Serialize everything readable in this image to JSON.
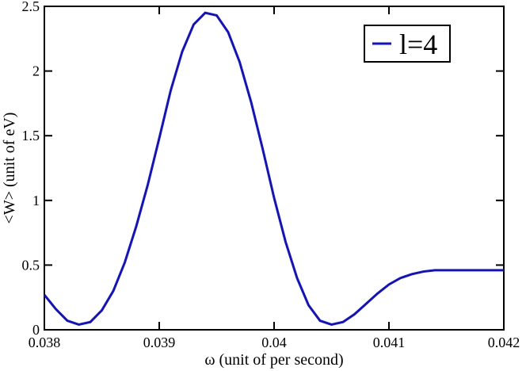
{
  "chart_data": {
    "type": "line",
    "xlabel": "ω (unit of per second)",
    "ylabel": "<W> (unit of eV)",
    "x": [
      0.038,
      0.0381,
      0.0382,
      0.0383,
      0.0384,
      0.0385,
      0.0386,
      0.0387,
      0.0388,
      0.0389,
      0.039,
      0.0391,
      0.0392,
      0.0393,
      0.0394,
      0.0395,
      0.0396,
      0.0397,
      0.0398,
      0.0399,
      0.04,
      0.0401,
      0.0402,
      0.0403,
      0.0404,
      0.0405,
      0.0406,
      0.0407,
      0.0408,
      0.0409,
      0.041,
      0.0411,
      0.0412,
      0.0413,
      0.0414,
      0.0415,
      0.0416,
      0.0417,
      0.0418,
      0.0419,
      0.042
    ],
    "series": [
      {
        "name": "l=4",
        "color": "#1010d0",
        "values": [
          0.27,
          0.16,
          0.07,
          0.04,
          0.06,
          0.15,
          0.3,
          0.52,
          0.8,
          1.12,
          1.48,
          1.85,
          2.15,
          2.36,
          2.45,
          2.43,
          2.3,
          2.07,
          1.76,
          1.4,
          1.02,
          0.68,
          0.4,
          0.19,
          0.07,
          0.04,
          0.06,
          0.12,
          0.2,
          0.28,
          0.35,
          0.4,
          0.43,
          0.45,
          0.46,
          0.46,
          0.46,
          0.46,
          0.46,
          0.46,
          0.46
        ]
      }
    ],
    "xlim": [
      0.038,
      0.042
    ],
    "xticks": [
      0.038,
      0.039,
      0.04,
      0.041,
      0.042
    ],
    "ylim": [
      0,
      2.5
    ],
    "yticks": [
      0,
      0.5,
      1,
      1.5,
      2,
      2.5
    ],
    "legend": "top-right",
    "grid": false
  }
}
